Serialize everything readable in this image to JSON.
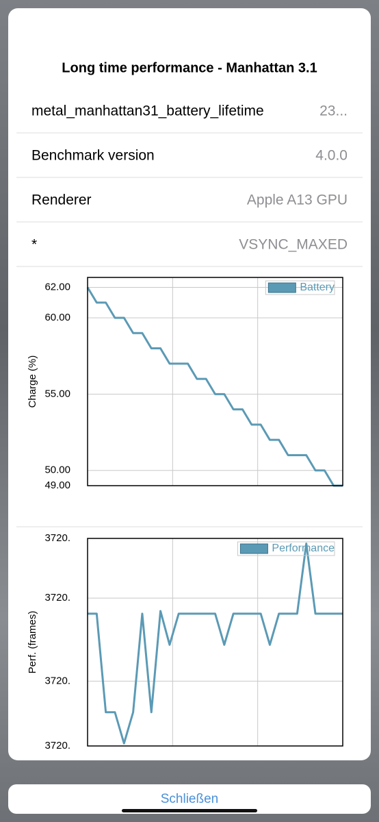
{
  "header": {
    "title": "Long time performance - Manhattan 3.1"
  },
  "rows": [
    {
      "label": "metal_manhattan31_battery_lifetime",
      "value": "23..."
    },
    {
      "label": "Benchmark version",
      "value": "4.0.0"
    },
    {
      "label": "Renderer",
      "value": "Apple A13 GPU"
    },
    {
      "label": "*",
      "value": "VSYNC_MAXED"
    }
  ],
  "chart_data": [
    {
      "type": "line",
      "y_label": "Charge (%)",
      "ylim": [
        49,
        62.65
      ],
      "yticks": [
        {
          "value": 62,
          "label": "62.00"
        },
        {
          "value": 60,
          "label": "60.00"
        },
        {
          "value": 55,
          "label": "55.00"
        },
        {
          "value": 50,
          "label": "50.00"
        },
        {
          "value": 49,
          "label": "49.00"
        }
      ],
      "grid": true,
      "legend": "top-right",
      "series": [
        {
          "name": "Battery",
          "color": "#5b9ab5",
          "values": [
            62,
            61,
            61,
            60,
            60,
            59,
            59,
            58,
            58,
            57,
            57,
            57,
            56,
            56,
            55,
            55,
            54,
            54,
            53,
            53,
            52,
            52,
            51,
            51,
            51,
            50,
            50,
            49,
            49
          ]
        }
      ]
    },
    {
      "type": "line",
      "y_label": "Perf. (frames)",
      "ylim": [
        3719.6,
        3720.4
      ],
      "yticks": [
        {
          "value": 3720.4,
          "label": "3720."
        },
        {
          "value": 3720.17,
          "label": "3720."
        },
        {
          "value": 3719.85,
          "label": "3720."
        },
        {
          "value": 3719.6,
          "label": "3720."
        }
      ],
      "grid": true,
      "legend": "top-right",
      "series": [
        {
          "name": "Performance",
          "color": "#5b9ab5",
          "values": [
            3720.11,
            3720.11,
            3719.73,
            3719.73,
            3719.61,
            3719.73,
            3720.11,
            3719.73,
            3720.12,
            3719.99,
            3720.11,
            3720.11,
            3720.11,
            3720.11,
            3720.11,
            3719.99,
            3720.11,
            3720.11,
            3720.11,
            3720.11,
            3719.99,
            3720.11,
            3720.11,
            3720.11,
            3720.38,
            3720.11,
            3720.11,
            3720.11,
            3720.11
          ]
        }
      ]
    }
  ],
  "footer": {
    "button": "Schließen"
  }
}
